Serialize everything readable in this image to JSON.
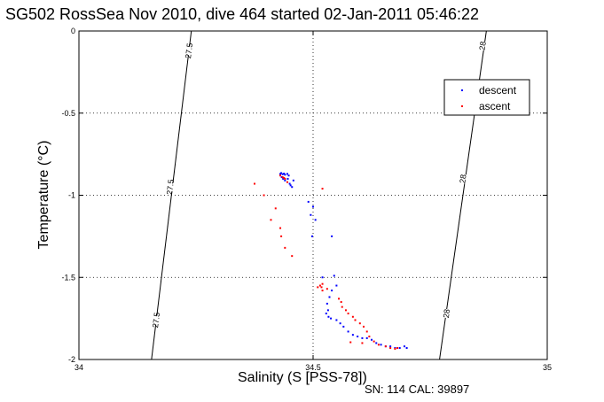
{
  "chart_data": {
    "type": "scatter",
    "title": "SG502 RossSea Nov 2010, dive 464 started 02-Jan-2011 05:46:22",
    "xlabel": "Salinity (S [PSS-78])",
    "ylabel": "Temperature (°C)",
    "note": "SN: 114  CAL: 39897",
    "xlim": [
      34,
      35
    ],
    "ylim": [
      -2,
      0
    ],
    "xticks": [
      34,
      34.5,
      35
    ],
    "xtick_labels": [
      "34",
      "34.5",
      "35"
    ],
    "yticks": [
      0,
      -0.5,
      -1,
      -1.5,
      -2
    ],
    "ytick_labels": [
      "0",
      "-0.5",
      "-1",
      "-1.5",
      "-2"
    ],
    "grid": true,
    "legend_position": "top-right",
    "contours": [
      {
        "label": "27.5",
        "points": [
          [
            34.24,
            0
          ],
          [
            34.155,
            -2
          ]
        ],
        "label_positions": [
          [
            34.235,
            -0.12
          ],
          [
            34.195,
            -0.95
          ],
          [
            34.165,
            -1.76
          ]
        ]
      },
      {
        "label": "28",
        "points": [
          [
            34.87,
            0
          ],
          [
            34.77,
            -2
          ]
        ],
        "label_positions": [
          [
            34.862,
            -0.09
          ],
          [
            34.82,
            -0.9
          ],
          [
            34.785,
            -1.72
          ]
        ]
      }
    ],
    "series": [
      {
        "name": "descent",
        "color": "#0000ff",
        "points": [
          [
            34.43,
            -0.87
          ],
          [
            34.432,
            -0.865
          ],
          [
            34.435,
            -0.872
          ],
          [
            34.438,
            -0.868
          ],
          [
            34.44,
            -0.875
          ],
          [
            34.445,
            -0.87
          ],
          [
            34.448,
            -0.88
          ],
          [
            34.446,
            -0.9
          ],
          [
            34.44,
            -0.91
          ],
          [
            34.436,
            -0.9
          ],
          [
            34.433,
            -0.89
          ],
          [
            34.45,
            -0.93
          ],
          [
            34.455,
            -0.95
          ],
          [
            34.452,
            -0.94
          ],
          [
            34.458,
            -0.91
          ],
          [
            34.49,
            -1.04
          ],
          [
            34.5,
            -1.07
          ],
          [
            34.495,
            -1.12
          ],
          [
            34.505,
            -1.15
          ],
          [
            34.498,
            -1.25
          ],
          [
            34.54,
            -1.25
          ],
          [
            34.52,
            -1.5
          ],
          [
            34.545,
            -1.49
          ],
          [
            34.55,
            -1.55
          ],
          [
            34.54,
            -1.58
          ],
          [
            34.535,
            -1.62
          ],
          [
            34.53,
            -1.66
          ],
          [
            34.532,
            -1.7
          ],
          [
            34.528,
            -1.72
          ],
          [
            34.533,
            -1.74
          ],
          [
            34.538,
            -1.75
          ],
          [
            34.55,
            -1.76
          ],
          [
            34.558,
            -1.78
          ],
          [
            34.565,
            -1.8
          ],
          [
            34.575,
            -1.83
          ],
          [
            34.585,
            -1.85
          ],
          [
            34.595,
            -1.86
          ],
          [
            34.605,
            -1.87
          ],
          [
            34.615,
            -1.87
          ],
          [
            34.625,
            -1.88
          ],
          [
            34.635,
            -1.9
          ],
          [
            34.645,
            -1.91
          ],
          [
            34.655,
            -1.92
          ],
          [
            34.665,
            -1.92
          ],
          [
            34.675,
            -1.93
          ],
          [
            34.685,
            -1.93
          ],
          [
            34.695,
            -1.92
          ],
          [
            34.7,
            -1.93
          ]
        ]
      },
      {
        "name": "ascent",
        "color": "#ff0000",
        "points": [
          [
            34.375,
            -0.93
          ],
          [
            34.395,
            -1.0
          ],
          [
            34.43,
            -0.88
          ],
          [
            34.435,
            -0.89
          ],
          [
            34.44,
            -0.9
          ],
          [
            34.445,
            -0.92
          ],
          [
            34.438,
            -0.895
          ],
          [
            34.42,
            -1.08
          ],
          [
            34.41,
            -1.15
          ],
          [
            34.43,
            -1.2
          ],
          [
            34.432,
            -1.25
          ],
          [
            34.44,
            -1.32
          ],
          [
            34.455,
            -1.37
          ],
          [
            34.52,
            -0.96
          ],
          [
            34.51,
            -1.56
          ],
          [
            34.515,
            -1.55
          ],
          [
            34.52,
            -1.54
          ],
          [
            34.518,
            -1.56
          ],
          [
            34.52,
            -1.58
          ],
          [
            34.53,
            -1.57
          ],
          [
            34.555,
            -1.63
          ],
          [
            34.56,
            -1.65
          ],
          [
            34.562,
            -1.68
          ],
          [
            34.57,
            -1.7
          ],
          [
            34.575,
            -1.72
          ],
          [
            34.585,
            -1.74
          ],
          [
            34.59,
            -1.76
          ],
          [
            34.6,
            -1.78
          ],
          [
            34.608,
            -1.8
          ],
          [
            34.615,
            -1.83
          ],
          [
            34.62,
            -1.86
          ],
          [
            34.63,
            -1.89
          ],
          [
            34.64,
            -1.91
          ],
          [
            34.655,
            -1.92
          ],
          [
            34.665,
            -1.93
          ],
          [
            34.675,
            -1.935
          ],
          [
            34.68,
            -1.93
          ],
          [
            34.605,
            -1.9
          ],
          [
            34.58,
            -1.895
          ]
        ]
      }
    ]
  }
}
